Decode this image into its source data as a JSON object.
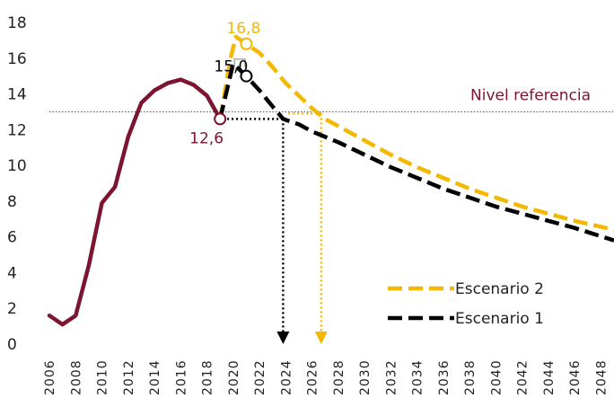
{
  "chart_data": {
    "type": "line",
    "xlim": [
      2006,
      2049
    ],
    "ylim": [
      0,
      18
    ],
    "y_ticks": [
      "0",
      "2",
      "4",
      "6",
      "8",
      "10",
      "12",
      "14",
      "16",
      "18"
    ],
    "x_ticks": [
      "2006",
      "2008",
      "2010",
      "2012",
      "2014",
      "2016",
      "2018",
      "2020",
      "2022",
      "2024",
      "2026",
      "2028",
      "2030",
      "2032",
      "2034",
      "2036",
      "2038",
      "2040",
      "2042",
      "2044",
      "2046",
      "2048"
    ],
    "grid": false,
    "colors": {
      "historical": "#7b1530",
      "escenario1": "#000000",
      "escenario2": "#f5b800",
      "reference": "#555555"
    },
    "reference": {
      "value": 13.0,
      "label": "Nivel referencia"
    },
    "historical": {
      "x": [
        2006,
        2007,
        2008,
        2009,
        2010,
        2011,
        2012,
        2013,
        2014,
        2015,
        2016,
        2017,
        2018,
        2019
      ],
      "y": [
        1.6,
        1.1,
        1.6,
        4.4,
        7.9,
        8.8,
        11.6,
        13.5,
        14.2,
        14.6,
        14.8,
        14.5,
        13.9,
        12.6
      ]
    },
    "series": [
      {
        "name": "Escenario 2",
        "x": [
          2019,
          2019.8,
          2020.2,
          2021,
          2022,
          2023,
          2024,
          2025,
          2026,
          2027,
          2028,
          2030,
          2032,
          2034,
          2036,
          2038,
          2040,
          2042,
          2044,
          2046,
          2049
        ],
        "y": [
          12.6,
          16.0,
          17.2,
          16.8,
          16.3,
          15.5,
          14.6,
          13.9,
          13.2,
          12.6,
          12.2,
          11.4,
          10.6,
          9.9,
          9.3,
          8.7,
          8.2,
          7.7,
          7.3,
          6.9,
          6.4
        ]
      },
      {
        "name": "Escenario 1",
        "x": [
          2019,
          2020,
          2021,
          2022,
          2023,
          2023.8,
          2025,
          2026,
          2028,
          2030,
          2032,
          2034,
          2036,
          2038,
          2040,
          2042,
          2044,
          2046,
          2049
        ],
        "y": [
          12.6,
          15.7,
          15.0,
          14.2,
          13.3,
          12.6,
          12.3,
          11.9,
          11.3,
          10.6,
          9.9,
          9.3,
          8.7,
          8.2,
          7.7,
          7.3,
          6.9,
          6.5,
          5.8
        ]
      }
    ],
    "annotations": [
      {
        "text": "16,8",
        "x": 2021,
        "y": 16.8,
        "color": "#f5b800"
      },
      {
        "text": "15,0",
        "x": 2021,
        "y": 15.0,
        "color": "#000000"
      },
      {
        "text": "12,6",
        "x": 2019,
        "y": 12.6,
        "color": "#7b1530"
      }
    ],
    "arrows": [
      {
        "x": 2023.8,
        "from_y": 12.6,
        "color": "#000000"
      },
      {
        "x": 2026.7,
        "from_y": 12.9,
        "color": "#f5b800"
      }
    ],
    "legend": {
      "placement": "bottom-right",
      "items": [
        "Escenario 2",
        "Escenario 1"
      ]
    }
  }
}
